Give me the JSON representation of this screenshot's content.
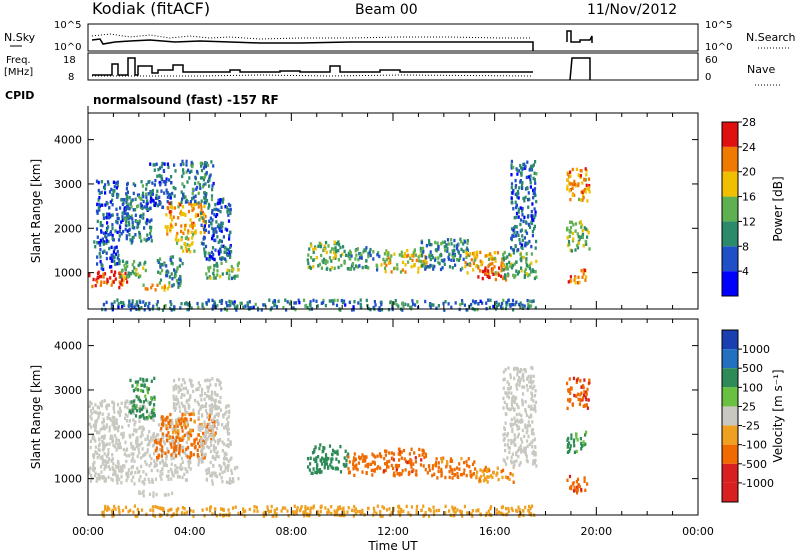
{
  "header": {
    "station": "Kodiak (fitACF)",
    "beam": "Beam 00",
    "date": "11/Nov/2012"
  },
  "noise_panel": {
    "left_label": "N.Sky",
    "right_label": "N.Search",
    "left_ticks": [
      "10^5",
      "10^0"
    ],
    "right_ticks": [
      "10^5",
      "10^0"
    ]
  },
  "freq_panel": {
    "left_label_1": "Freq.",
    "left_label_2": "[MHz]",
    "right_label": "Nave",
    "left_ticks": [
      "18",
      "8"
    ],
    "right_ticks": [
      "60",
      "0"
    ]
  },
  "cpid": {
    "label": "CPID",
    "text": "normalsound (fast) -157 RF"
  },
  "colors": {
    "power_scale": [
      "#0000ff",
      "#2050c8",
      "#2a8a6a",
      "#5fb050",
      "#f0c000",
      "#f07a00",
      "#e01010"
    ],
    "velocity_scale": [
      "#1a3fb0",
      "#2470c0",
      "#2e8b57",
      "#6ac040",
      "#c8c8c0",
      "#f0a020",
      "#f06a00",
      "#d82020"
    ]
  },
  "chart_data": [
    {
      "type": "heatmap",
      "title": "",
      "xlabel": "",
      "ylabel": "Slant Range [km]",
      "xlim": [
        "00:00",
        "24:00"
      ],
      "ylim": [
        180,
        4600
      ],
      "yticks": [
        "1000",
        "2000",
        "3000",
        "4000"
      ],
      "colorbar": {
        "label": "Power [dB]",
        "ticks": [
          "4",
          "8",
          "12",
          "16",
          "20",
          "24",
          "28"
        ],
        "range": [
          0,
          30
        ]
      },
      "patches": [
        {
          "t0": 0.0,
          "t1": 1.5,
          "r0": 700,
          "r1": 1100,
          "value": 26
        },
        {
          "t0": 0.2,
          "t1": 1.2,
          "r0": 1100,
          "r1": 1800,
          "value": 6
        },
        {
          "t0": 0.3,
          "t1": 1.6,
          "r0": 1800,
          "r1": 2700,
          "value": 7
        },
        {
          "t0": 0.3,
          "t1": 1.2,
          "r0": 2700,
          "r1": 3100,
          "value": 6
        },
        {
          "t0": 1.2,
          "t1": 2.3,
          "r0": 900,
          "r1": 1300,
          "value": 14
        },
        {
          "t0": 1.4,
          "t1": 2.5,
          "r0": 1700,
          "r1": 3100,
          "value": 9
        },
        {
          "t0": 1.9,
          "t1": 3.2,
          "r0": 640,
          "r1": 760,
          "value": 21
        },
        {
          "t0": 2.4,
          "t1": 3.4,
          "r0": 2500,
          "r1": 3500,
          "value": 7
        },
        {
          "t0": 3.0,
          "t1": 4.6,
          "r0": 1900,
          "r1": 2600,
          "value": 22
        },
        {
          "t0": 3.4,
          "t1": 4.2,
          "r0": 1500,
          "r1": 1900,
          "value": 18
        },
        {
          "t0": 2.7,
          "t1": 3.7,
          "r0": 700,
          "r1": 1400,
          "value": 11
        },
        {
          "t0": 3.6,
          "t1": 4.9,
          "r0": 2600,
          "r1": 3550,
          "value": 9
        },
        {
          "t0": 4.6,
          "t1": 5.9,
          "r0": 900,
          "r1": 1300,
          "value": 13
        },
        {
          "t0": 4.4,
          "t1": 5.6,
          "r0": 1300,
          "r1": 2700,
          "value": 8
        },
        {
          "t0": 8.6,
          "t1": 10.0,
          "r0": 1100,
          "r1": 1750,
          "value": 14
        },
        {
          "t0": 10.0,
          "t1": 11.5,
          "r0": 1100,
          "r1": 1600,
          "value": 11
        },
        {
          "t0": 11.5,
          "t1": 13.3,
          "r0": 1050,
          "r1": 1550,
          "value": 18
        },
        {
          "t0": 13.0,
          "t1": 15.0,
          "r0": 1100,
          "r1": 1800,
          "value": 10
        },
        {
          "t0": 14.8,
          "t1": 16.3,
          "r0": 1000,
          "r1": 1500,
          "value": 21
        },
        {
          "t0": 15.3,
          "t1": 16.5,
          "r0": 850,
          "r1": 1150,
          "value": 27
        },
        {
          "t0": 16.3,
          "t1": 17.6,
          "r0": 900,
          "r1": 1500,
          "value": 14
        },
        {
          "t0": 16.6,
          "t1": 17.6,
          "r0": 1500,
          "r1": 3550,
          "value": 8
        },
        {
          "t0": 18.8,
          "t1": 19.6,
          "r0": 800,
          "r1": 1100,
          "value": 22
        },
        {
          "t0": 18.8,
          "t1": 19.7,
          "r0": 1500,
          "r1": 2200,
          "value": 15
        },
        {
          "t0": 18.8,
          "t1": 19.7,
          "r0": 2600,
          "r1": 3400,
          "value": 22
        },
        {
          "t0": 0.5,
          "t1": 17.6,
          "r0": 190,
          "r1": 420,
          "value": 9
        }
      ]
    },
    {
      "type": "heatmap",
      "title": "",
      "xlabel": "Time UT",
      "ylabel": "Slant Range [km]",
      "xlim": [
        "00:00",
        "24:00"
      ],
      "ylim": [
        180,
        4600
      ],
      "xticks": [
        "00:00",
        "04:00",
        "08:00",
        "12:00",
        "16:00",
        "20:00",
        "00:00"
      ],
      "yticks": [
        "1000",
        "2000",
        "3000",
        "4000"
      ],
      "colorbar": {
        "label": "Velocity [m s⁻¹]",
        "ticks": [
          "1000",
          "500",
          "100",
          "25",
          "-25",
          "-100",
          "-500",
          "-1000"
        ]
      },
      "patches": [
        {
          "t0": 0.0,
          "t1": 2.6,
          "r0": 900,
          "r1": 2800,
          "value": 0
        },
        {
          "t0": 1.6,
          "t1": 2.6,
          "r0": 2400,
          "r1": 3300,
          "value": 120
        },
        {
          "t0": 2.6,
          "t1": 4.0,
          "r0": 1000,
          "r1": 2400,
          "value": 0
        },
        {
          "t0": 1.9,
          "t1": 3.3,
          "r0": 640,
          "r1": 760,
          "value": 10
        },
        {
          "t0": 2.6,
          "t1": 4.6,
          "r0": 1500,
          "r1": 1900,
          "value": -220
        },
        {
          "t0": 2.8,
          "t1": 5.0,
          "r0": 1900,
          "r1": 2500,
          "value": -120
        },
        {
          "t0": 3.3,
          "t1": 5.2,
          "r0": 2500,
          "r1": 3300,
          "value": 0
        },
        {
          "t0": 4.6,
          "t1": 5.9,
          "r0": 900,
          "r1": 1300,
          "value": 0
        },
        {
          "t0": 4.3,
          "t1": 5.6,
          "r0": 1300,
          "r1": 2700,
          "value": 0
        },
        {
          "t0": 8.6,
          "t1": 10.2,
          "r0": 1150,
          "r1": 1800,
          "value": 200
        },
        {
          "t0": 10.2,
          "t1": 11.6,
          "r0": 1100,
          "r1": 1600,
          "value": -300
        },
        {
          "t0": 11.6,
          "t1": 13.3,
          "r0": 1100,
          "r1": 1700,
          "value": -400
        },
        {
          "t0": 13.3,
          "t1": 15.2,
          "r0": 1050,
          "r1": 1500,
          "value": -150
        },
        {
          "t0": 15.2,
          "t1": 16.8,
          "r0": 950,
          "r1": 1300,
          "value": -80
        },
        {
          "t0": 16.3,
          "t1": 17.6,
          "r0": 1300,
          "r1": 3550,
          "value": 0
        },
        {
          "t0": 18.8,
          "t1": 19.7,
          "r0": 2600,
          "r1": 3300,
          "value": -400
        },
        {
          "t0": 18.8,
          "t1": 19.6,
          "r0": 1600,
          "r1": 2100,
          "value": 130
        },
        {
          "t0": 18.8,
          "t1": 19.6,
          "r0": 700,
          "r1": 1100,
          "value": -400
        },
        {
          "t0": 0.5,
          "t1": 17.6,
          "r0": 190,
          "r1": 420,
          "value": -60
        }
      ]
    }
  ]
}
